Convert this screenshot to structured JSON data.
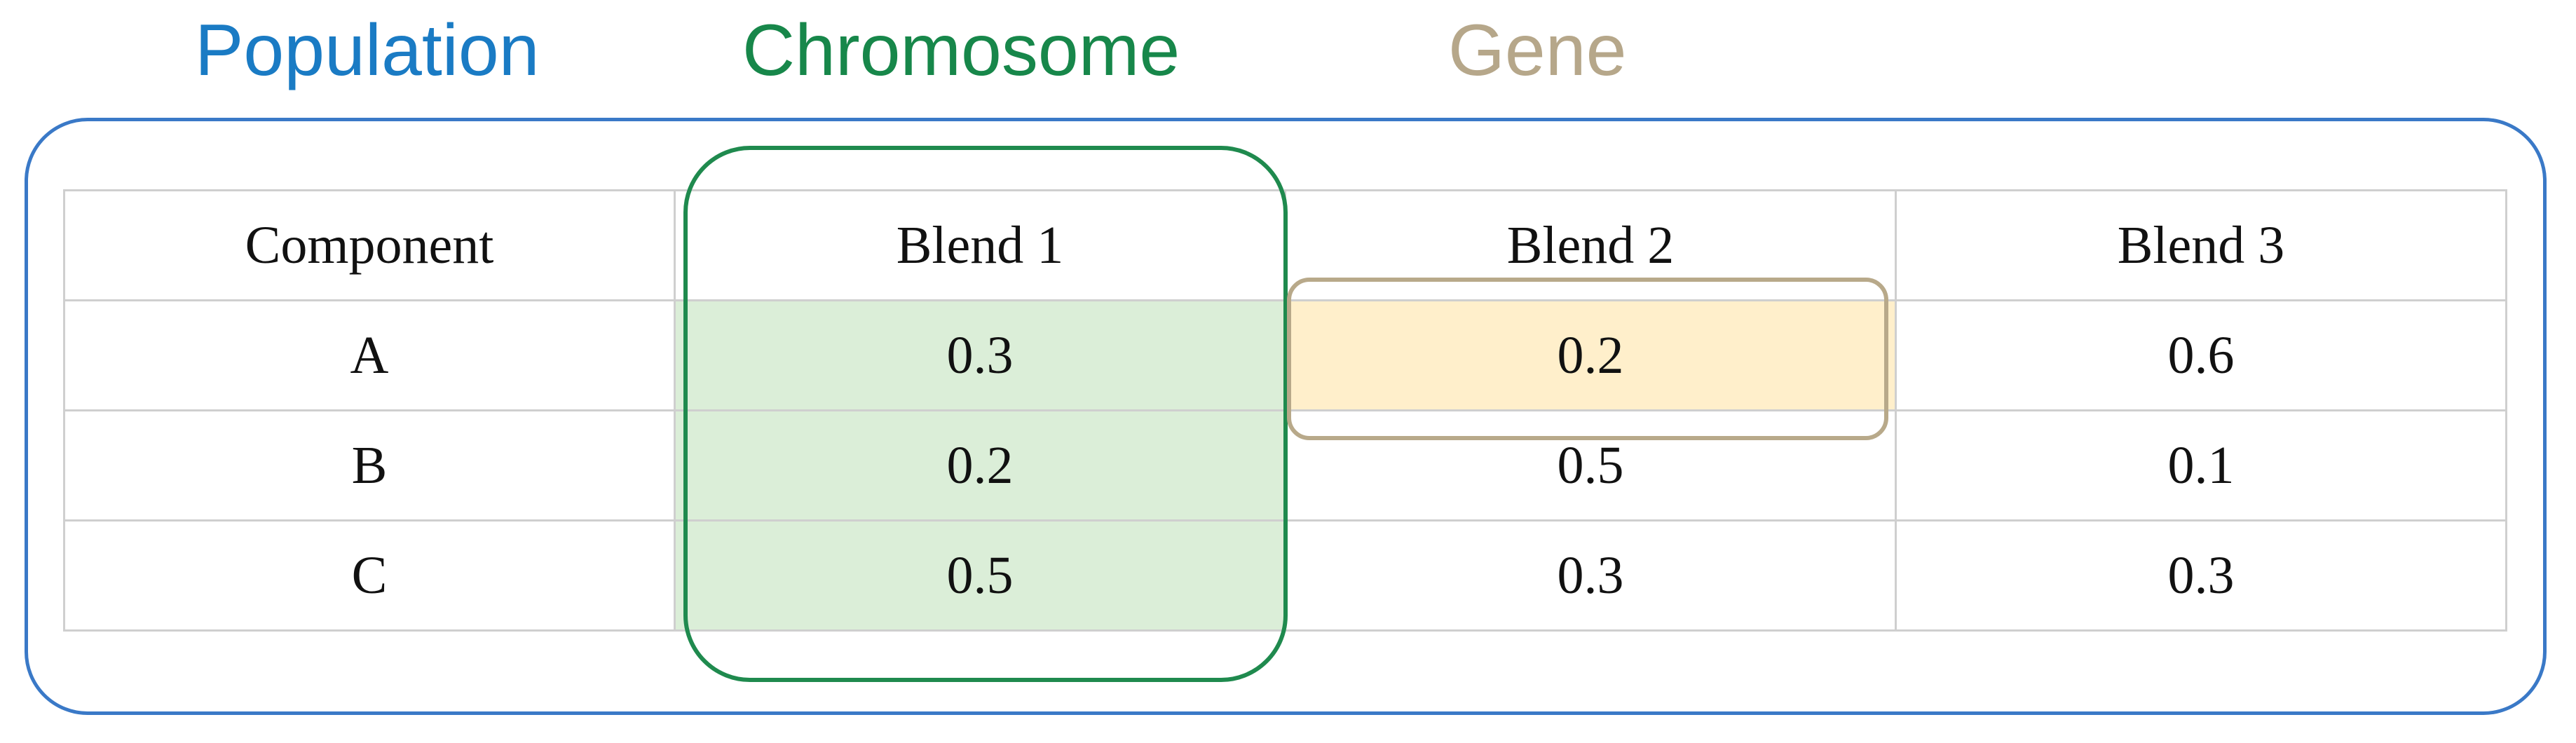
{
  "labels": {
    "population": "Population",
    "chromosome": "Chromosome",
    "gene": "Gene"
  },
  "colors": {
    "population": "#1a7bc4",
    "population_border": "#3a79c7",
    "chromosome": "#17874a",
    "chromosome_fill": "#dbeed8",
    "gene": "#b6a78a",
    "gene_fill": "#ffefcb",
    "table_border": "#cfcfcf"
  },
  "table": {
    "headers": [
      "Component",
      "Blend 1",
      "Blend 2",
      "Blend 3"
    ],
    "rows": [
      [
        "A",
        "0.3",
        "0.2",
        "0.6"
      ],
      [
        "B",
        "0.2",
        "0.5",
        "0.1"
      ],
      [
        "C",
        "0.5",
        "0.3",
        "0.3"
      ]
    ]
  }
}
